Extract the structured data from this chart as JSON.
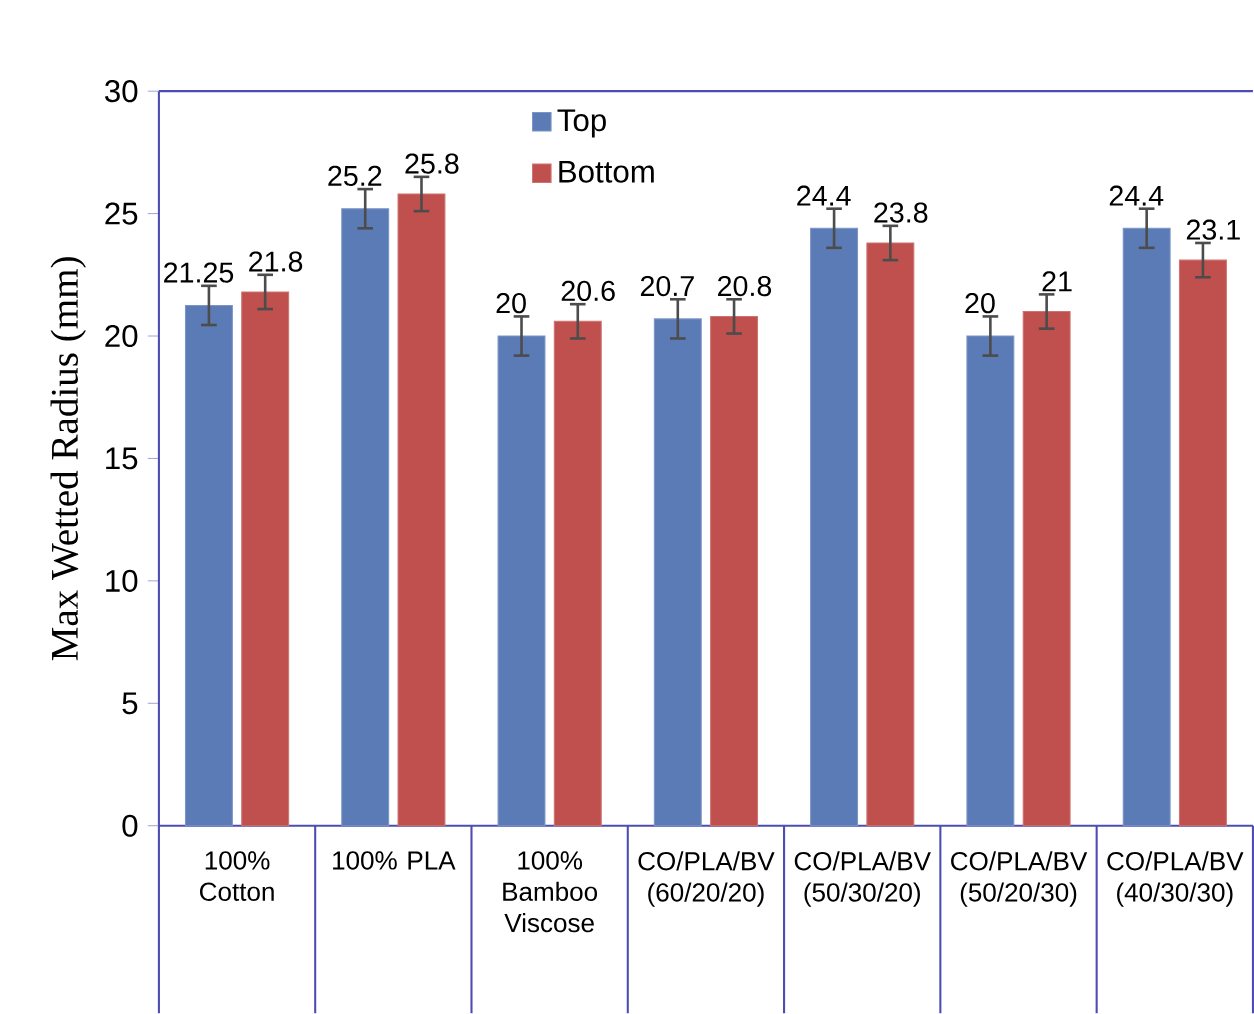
{
  "chart_data": {
    "type": "bar",
    "ylabel": "Max Wetted Radius (mm)",
    "categories": [
      "100% Cotton",
      "100% PLA",
      "100% Bamboo Viscose",
      "CO/PLA/BV (60/20/20)",
      "CO/PLA/BV (50/30/20)",
      "CO/PLA/BV (50/20/30)",
      "CO/PLA/BV (40/30/30)"
    ],
    "series": [
      {
        "name": "Top",
        "color": "#5b7bb6",
        "values": [
          21.25,
          25.2,
          20,
          20.7,
          24.4,
          20,
          24.4
        ],
        "errors": [
          0.8,
          0.8,
          0.8,
          0.8,
          0.8,
          0.8,
          0.8
        ]
      },
      {
        "name": "Bottom",
        "color": "#c0504d",
        "values": [
          21.8,
          25.8,
          20.6,
          20.8,
          23.8,
          21,
          23.1
        ],
        "errors": [
          0.7,
          0.7,
          0.7,
          0.7,
          0.7,
          0.7,
          0.7
        ]
      }
    ],
    "ylim": [
      0,
      30
    ],
    "yticks": [
      0,
      5,
      10,
      15,
      20,
      25,
      30
    ],
    "data_labels": true,
    "legend": "top",
    "grid": false
  }
}
